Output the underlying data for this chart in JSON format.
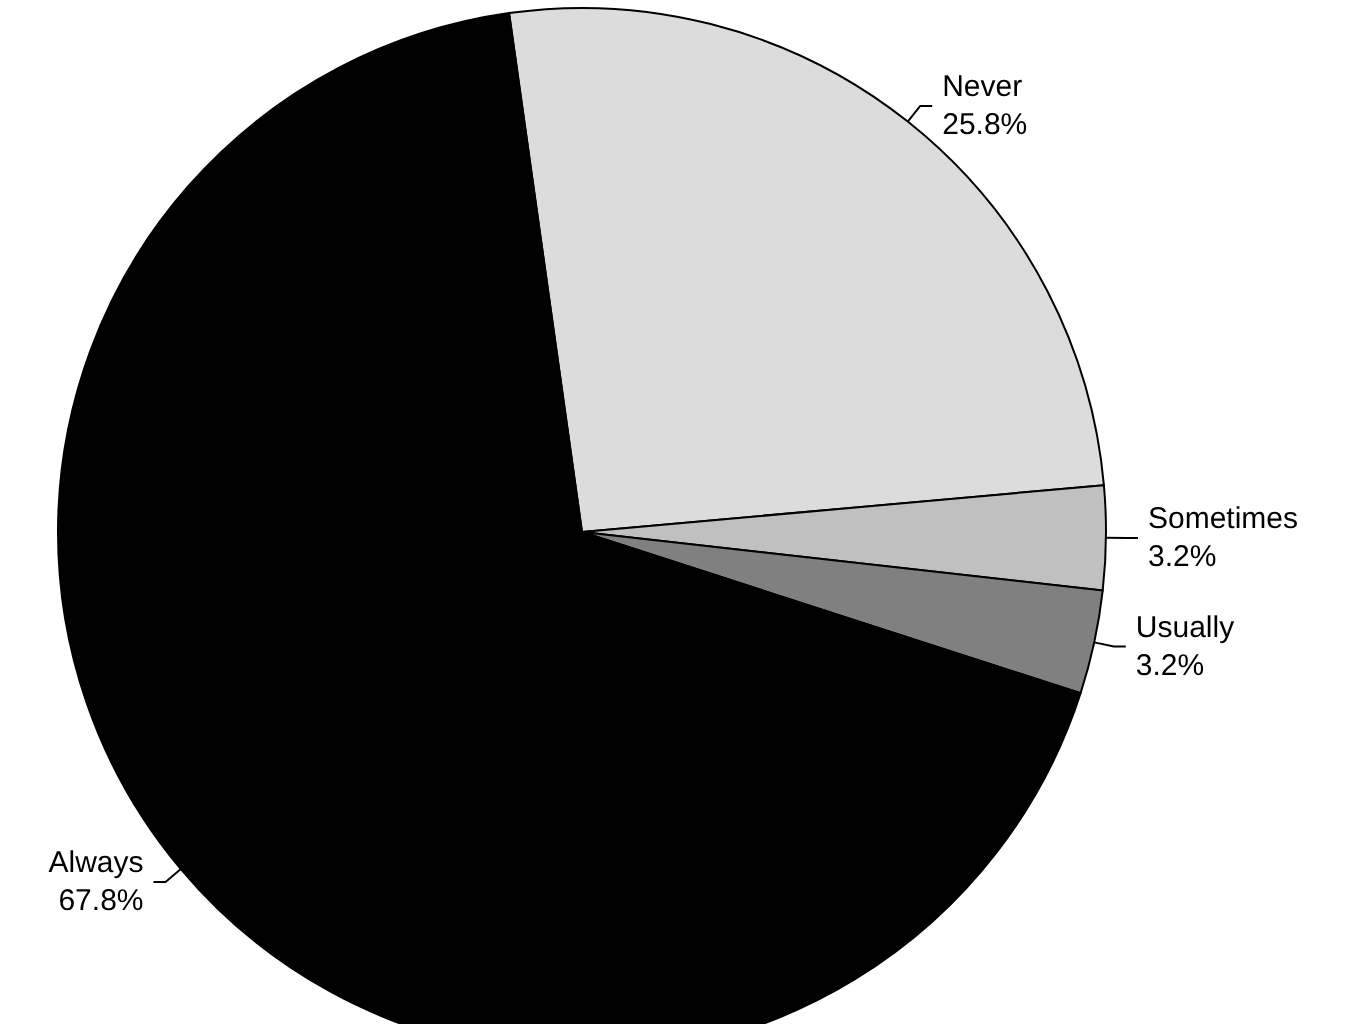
{
  "chart_data": {
    "type": "pie",
    "categories": [
      "Never",
      "Sometimes",
      "Usually",
      "Always"
    ],
    "values": [
      25.8,
      3.2,
      3.2,
      67.8
    ],
    "value_labels": [
      "25.8%",
      "3.2%",
      "3.2%",
      "67.8%"
    ],
    "colors": [
      "#dcdcdc",
      "#c0c0c0",
      "#808080",
      "#000000"
    ]
  }
}
